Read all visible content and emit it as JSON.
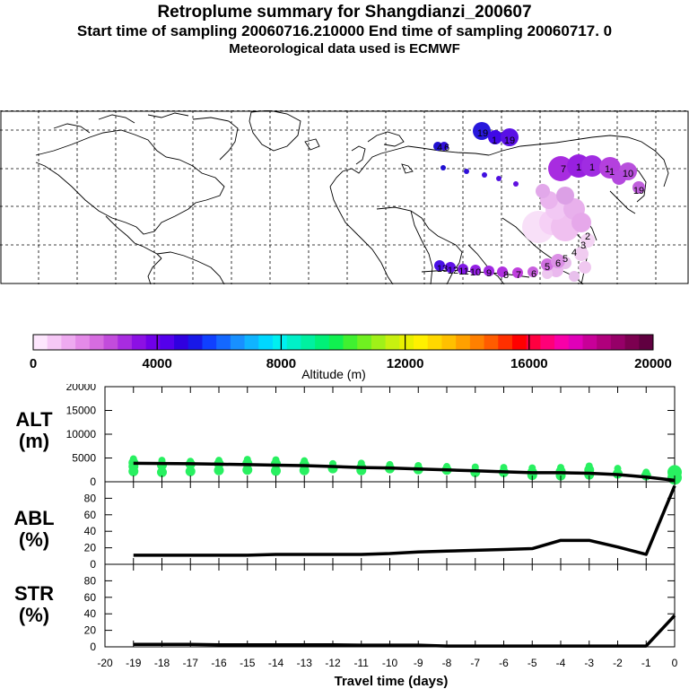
{
  "title": {
    "line1": "Retroplume summary for Shangdianzi_200607",
    "line2": "Start time of sampling 20060716.210000     End time of sampling 20060717.     0",
    "line3": "Meteorological data used is ECMWF"
  },
  "colorbar": {
    "ticks": [
      "0",
      "4000",
      "8000",
      "12000",
      "16000",
      "20000"
    ],
    "label": "Altitude (m)",
    "colors": [
      "#fde6fd",
      "#f6c8f6",
      "#eeaaf0",
      "#e48ae8",
      "#d66ce0",
      "#c24cdc",
      "#a82ce0",
      "#8c10e4",
      "#7000e8",
      "#5400ec",
      "#3000e0",
      "#1818e8",
      "#1040ff",
      "#1468ff",
      "#1890ff",
      "#10b4ff",
      "#00d8ff",
      "#00f0f0",
      "#00f0c8",
      "#00f0a0",
      "#00f078",
      "#10f050",
      "#40f030",
      "#70f020",
      "#a0f018",
      "#c8f010",
      "#e8f000",
      "#fff000",
      "#ffd800",
      "#ffc000",
      "#ffa000",
      "#ff8000",
      "#ff5c00",
      "#ff3000",
      "#ff0000",
      "#ff0040",
      "#ff0078",
      "#f800a8",
      "#e000b8",
      "#c80098",
      "#b0007c",
      "#960068",
      "#7c0050",
      "#600040"
    ]
  },
  "map": {
    "plume_labels": [
      "19",
      "1",
      "19",
      "4",
      "6",
      "7",
      "1",
      "1",
      "1",
      "1",
      "10",
      "19",
      "13",
      "12",
      "11",
      "10",
      "9",
      "8",
      "7",
      "6",
      "5",
      "6",
      "5",
      "4",
      "3",
      "2"
    ]
  },
  "chart_data": [
    {
      "type": "line",
      "panel": "ALT",
      "ylabel_line1": "ALT",
      "ylabel_line2": "(m)",
      "x": [
        -19,
        -18,
        -17,
        -16,
        -15,
        -14,
        -13,
        -12,
        -11,
        -10,
        -9,
        -8,
        -7,
        -6,
        -5,
        -4,
        -3,
        -2,
        -1,
        0
      ],
      "values": [
        3900,
        3850,
        3800,
        3700,
        3600,
        3500,
        3400,
        3200,
        3000,
        2900,
        2700,
        2500,
        2300,
        2100,
        1900,
        1900,
        1800,
        1500,
        1000,
        300
      ],
      "ylim": [
        0,
        20000
      ],
      "yticks": [
        "0",
        "5000",
        "10000",
        "15000",
        "20000"
      ],
      "dots": [
        {
          "x": -19,
          "ys": [
            4800,
            4000,
            3200,
            2200
          ]
        },
        {
          "x": -18,
          "ys": [
            4500,
            3500,
            2000
          ]
        },
        {
          "x": -17,
          "ys": [
            4300,
            3700,
            2200
          ]
        },
        {
          "x": -16,
          "ys": [
            4500,
            3800,
            2400
          ]
        },
        {
          "x": -15,
          "ys": [
            4700,
            3900,
            2500
          ]
        },
        {
          "x": -14,
          "ys": [
            4600,
            3800,
            2300
          ]
        },
        {
          "x": -13,
          "ys": [
            4400,
            3600,
            2400
          ]
        },
        {
          "x": -12,
          "ys": [
            3800,
            2800
          ]
        },
        {
          "x": -11,
          "ys": [
            3900,
            3000,
            2400
          ]
        },
        {
          "x": -10,
          "ys": [
            3600,
            2800
          ]
        },
        {
          "x": -9,
          "ys": [
            3400,
            2600
          ]
        },
        {
          "x": -8,
          "ys": [
            3200,
            2500
          ]
        },
        {
          "x": -7,
          "ys": [
            3100,
            2000
          ]
        },
        {
          "x": -6,
          "ys": [
            3000,
            2000
          ]
        },
        {
          "x": -5,
          "ys": [
            2900,
            2000,
            1400
          ]
        },
        {
          "x": -4,
          "ys": [
            3000,
            2200,
            1300
          ]
        },
        {
          "x": -3,
          "ys": [
            3300,
            2500,
            1500
          ]
        },
        {
          "x": -2,
          "ys": [
            2800,
            1700
          ]
        },
        {
          "x": -1,
          "ys": [
            2000,
            1300
          ]
        },
        {
          "x": 0,
          "ys": [
            2000,
            900
          ]
        }
      ]
    },
    {
      "type": "line",
      "panel": "ABL",
      "ylabel_line1": "ABL",
      "ylabel_line2": "(%)",
      "x": [
        -19,
        -18,
        -17,
        -16,
        -15,
        -14,
        -13,
        -12,
        -11,
        -10,
        -9,
        -8,
        -7,
        -6,
        -5,
        -4,
        -3,
        -2,
        -1,
        0
      ],
      "values": [
        11,
        11,
        11,
        11,
        11,
        12,
        12,
        12,
        12,
        13,
        15,
        16,
        17,
        18,
        19,
        29,
        29,
        21,
        12,
        95
      ],
      "ylim": [
        0,
        100
      ],
      "yticks": [
        "0",
        "20",
        "40",
        "60",
        "80"
      ]
    },
    {
      "type": "line",
      "panel": "STR",
      "ylabel_line1": "STR",
      "ylabel_line2": "(%)",
      "x": [
        -19,
        -18,
        -17,
        -16,
        -15,
        -14,
        -13,
        -12,
        -11,
        -10,
        -9,
        -8,
        -7,
        -6,
        -5,
        -4,
        -3,
        -2,
        -1,
        0
      ],
      "values": [
        3,
        3,
        3,
        2.5,
        2.5,
        2.5,
        2.5,
        2.5,
        2,
        2,
        2,
        1,
        1,
        1,
        1,
        1,
        1,
        1,
        1,
        38
      ],
      "ylim": [
        0,
        100
      ],
      "yticks": [
        "0",
        "20",
        "40",
        "60",
        "80"
      ],
      "xlabel": "Travel time (days)",
      "xticks": [
        "-20",
        "-19",
        "-18",
        "-17",
        "-16",
        "-15",
        "-14",
        "-13",
        "-12",
        "-11",
        "-10",
        "-9",
        "-8",
        "-7",
        "-6",
        "-5",
        "-4",
        "-3",
        "-2",
        "-1",
        "0"
      ]
    }
  ]
}
